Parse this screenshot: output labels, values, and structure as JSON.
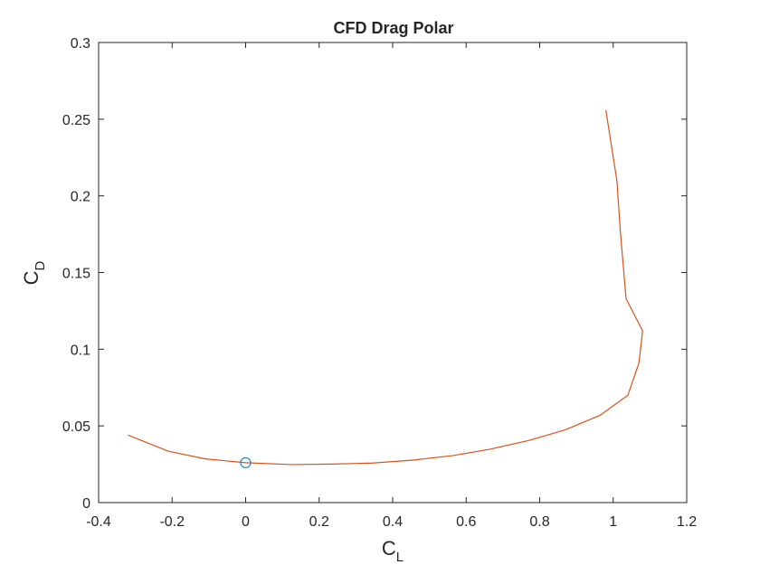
{
  "chart_data": {
    "type": "line",
    "title": "CFD Drag Polar",
    "xlabel": {
      "main": "C",
      "sub": "L"
    },
    "ylabel": {
      "main": "C",
      "sub": "D"
    },
    "xlim": [
      -0.4,
      1.2
    ],
    "ylim": [
      0,
      0.3
    ],
    "xticks": [
      -0.4,
      -0.2,
      0,
      0.2,
      0.4,
      0.6,
      0.8,
      1,
      1.2
    ],
    "xtick_labels": [
      "-0.4",
      "-0.2",
      "0",
      "0.2",
      "0.4",
      "0.6",
      "0.8",
      "1",
      "1.2"
    ],
    "yticks": [
      0,
      0.05,
      0.1,
      0.15,
      0.2,
      0.25,
      0.3
    ],
    "ytick_labels": [
      "0",
      "0.05",
      "0.1",
      "0.15",
      "0.2",
      "0.25",
      "0.3"
    ],
    "grid": false,
    "series": [
      {
        "color": "#d95319",
        "style": "line",
        "x": [
          -0.32,
          -0.21,
          -0.11,
          0.0,
          0.125,
          0.235,
          0.345,
          0.455,
          0.565,
          0.665,
          0.77,
          0.87,
          0.965,
          1.04,
          1.07,
          1.08,
          1.035,
          1.02,
          1.01,
          0.98
        ],
        "y": [
          0.044,
          0.0335,
          0.0285,
          0.026,
          0.0248,
          0.0251,
          0.0258,
          0.0277,
          0.0307,
          0.0348,
          0.0405,
          0.0475,
          0.057,
          0.07,
          0.091,
          0.112,
          0.133,
          0.175,
          0.21,
          0.256
        ]
      },
      {
        "color": "#0072bd",
        "style": "marker-circle",
        "x": [
          0.0
        ],
        "y": [
          0.026
        ]
      }
    ]
  }
}
